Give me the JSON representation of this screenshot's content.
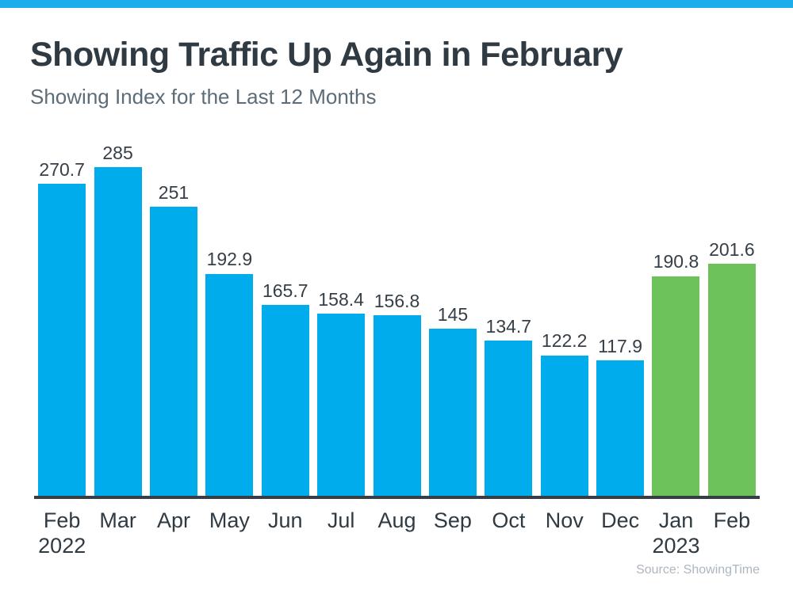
{
  "page": {
    "title": "Showing Traffic Up Again in February",
    "subtitle": "Showing Index for the Last 12 Months",
    "source": "Source: ShowingTime"
  },
  "theme": {
    "stripe_blue": "#1CADEC",
    "bar_blue": "#00ACEC",
    "bar_green": "#6EC25C",
    "title_color": "#2F3A43",
    "subtitle_color": "#5C6C78",
    "label_color": "#363E47",
    "axis_color": "#363D45",
    "source_color": "#AEB6BE"
  },
  "chart_data": {
    "type": "bar",
    "title": "Showing Traffic Up Again in February",
    "subtitle": "Showing Index for the Last 12 Months",
    "categories": [
      "Feb",
      "Mar",
      "Apr",
      "May",
      "Jun",
      "Jul",
      "Aug",
      "Sep",
      "Oct",
      "Nov",
      "Dec",
      "Jan",
      "Feb"
    ],
    "year_labels": [
      "2022",
      "",
      "",
      "",
      "",
      "",
      "",
      "",
      "",
      "",
      "",
      "2023",
      ""
    ],
    "series": [
      {
        "name": "Showing Index",
        "values": [
          270.7,
          285,
          251,
          192.9,
          165.7,
          158.4,
          156.8,
          145,
          134.7,
          122.2,
          117.9,
          190.8,
          201.6
        ]
      }
    ],
    "value_labels": [
      "270.7",
      "285",
      "251",
      "192.9",
      "165.7",
      "158.4",
      "156.8",
      "145",
      "134.7",
      "122.2",
      "117.9",
      "190.8",
      "201.6"
    ],
    "highlight_green_indices": [
      11,
      12
    ],
    "xlabel": "",
    "ylabel": "",
    "ylim": [
      0,
      320
    ],
    "grid": false,
    "legend": false,
    "data_labels": true,
    "source": "Source: ShowingTime"
  }
}
